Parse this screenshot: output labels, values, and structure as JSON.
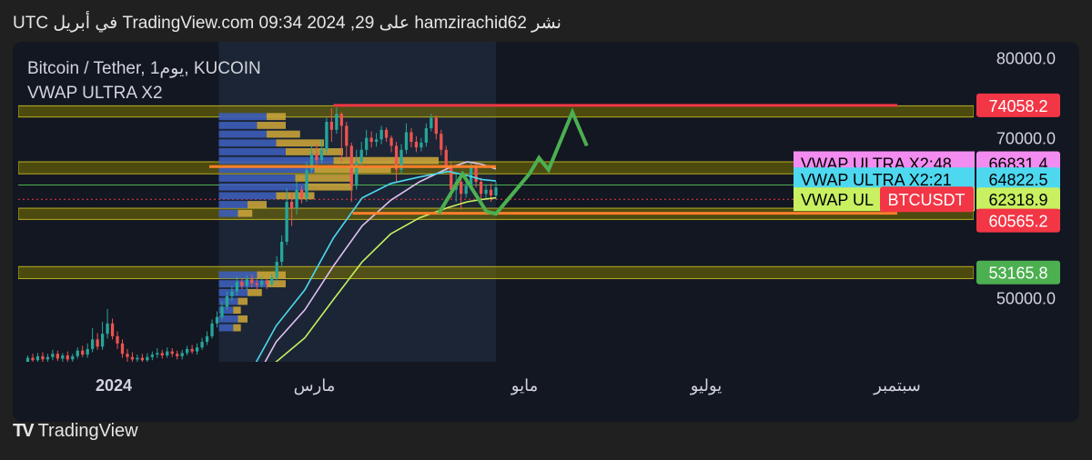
{
  "header": {
    "text": "نشر hamzirachid62 على TradingView.com 09:34 2024 ,29 في أبريل UTC"
  },
  "legend": {
    "symbol": "Bitcoin / Tether, 1يوم, KUCOIN",
    "indicator": "VWAP ULTRA X2"
  },
  "footer": {
    "brand": "TradingView",
    "logo_icon": "tradingview-logo-icon"
  },
  "colors": {
    "background": "#131722",
    "zone": "#8a8a00",
    "red": "#f23645",
    "orange": "#ff7f2a",
    "green_arrow": "#4caf50",
    "up": "#26a69a",
    "down": "#ef5350"
  },
  "chart_data": {
    "type": "candlestick",
    "symbol": "BTCUSDT",
    "ylim": [
      42000,
      82000
    ],
    "y_ticks": [
      {
        "value": 80000,
        "label": "80000.0"
      },
      {
        "value": 70000,
        "label": "70000.0"
      },
      {
        "value": 50000,
        "label": "50000.0"
      }
    ],
    "x_ticks": [
      {
        "label": "2024",
        "bold": true,
        "pos": 0.1
      },
      {
        "label": "مارس",
        "bold": false,
        "pos": 0.31
      },
      {
        "label": "مايو",
        "bold": false,
        "pos": 0.53
      },
      {
        "label": "يوليو",
        "bold": false,
        "pos": 0.72
      },
      {
        "label": "سبتمبر",
        "bold": false,
        "pos": 0.92
      }
    ],
    "price_labels": [
      {
        "text": "74058.2",
        "value": 74058.2,
        "bg": "#f23645",
        "fg": "#ffffff"
      },
      {
        "text": "66831.4",
        "value": 66831.4,
        "bg": "#f28cf0",
        "fg": "#000000"
      },
      {
        "text": "64822.5",
        "value": 64822.5,
        "bg": "#4dd8f0",
        "fg": "#000000"
      },
      {
        "text": "62318.9",
        "value": 62318.9,
        "bg": "#c8f060",
        "fg": "#000000"
      },
      {
        "text": "60565.2",
        "value": 60565.2,
        "bg": "#f23645",
        "fg": "#ffffff"
      },
      {
        "text": "53165.8",
        "value": 53165.8,
        "bg": "#4caf50",
        "fg": "#ffffff"
      }
    ],
    "series_labels": [
      {
        "text": "VWAP ULTRA X2:48",
        "value": 66831.4,
        "bg": "#f28cf0"
      },
      {
        "text": "VWAP ULTRA X2:21",
        "value": 64822.5,
        "bg": "#4dd8f0"
      },
      {
        "text": "VWAP UL",
        "value": 62318.9,
        "bg": "#c8f060"
      }
    ],
    "symbol_tag": {
      "text": "BTCUSDT",
      "value": 62318.9,
      "bg": "#f23645"
    },
    "zones": [
      {
        "from": 72600,
        "to": 74000
      },
      {
        "from": 65500,
        "to": 67000
      },
      {
        "from": 59800,
        "to": 61200
      },
      {
        "from": 52400,
        "to": 53900
      }
    ],
    "levels": [
      {
        "value": 74058.2,
        "color": "#f23645",
        "x0": 0.33,
        "x1": 0.92,
        "width": 3
      },
      {
        "value": 66400,
        "color": "#ff7f2a",
        "x0": 0.2,
        "x1": 0.5,
        "width": 3
      },
      {
        "value": 60565.2,
        "color": "#ff7f2a",
        "x0": 0.35,
        "x1": 0.92,
        "width": 3
      }
    ],
    "candles": [
      [
        41800,
        42500,
        41500,
        42800
      ],
      [
        42500,
        42200,
        41900,
        43000
      ],
      [
        42200,
        42700,
        41800,
        43100
      ],
      [
        42700,
        42300,
        42000,
        43200
      ],
      [
        42300,
        42600,
        41900,
        43000
      ],
      [
        42600,
        43000,
        42200,
        43500
      ],
      [
        43000,
        42400,
        42100,
        43400
      ],
      [
        42400,
        42800,
        42000,
        43100
      ],
      [
        42800,
        42300,
        42000,
        43300
      ],
      [
        42300,
        42700,
        41800,
        43000
      ],
      [
        42700,
        43400,
        42400,
        43800
      ],
      [
        43400,
        42900,
        42600,
        44000
      ],
      [
        42900,
        43600,
        42500,
        44300
      ],
      [
        43600,
        44800,
        43200,
        46200
      ],
      [
        44800,
        43900,
        43500,
        45600
      ],
      [
        43900,
        45500,
        43500,
        47000
      ],
      [
        45500,
        46800,
        44900,
        48600
      ],
      [
        46800,
        45200,
        44800,
        47400
      ],
      [
        45200,
        44300,
        43600,
        45800
      ],
      [
        44300,
        43000,
        42500,
        44800
      ],
      [
        43000,
        42600,
        42000,
        43600
      ],
      [
        42600,
        42300,
        41900,
        43200
      ],
      [
        42300,
        42500,
        41800,
        42900
      ],
      [
        42500,
        42200,
        41900,
        43000
      ],
      [
        42200,
        42600,
        41800,
        43100
      ],
      [
        42600,
        42900,
        42200,
        43300
      ],
      [
        42900,
        43100,
        42500,
        43700
      ],
      [
        43100,
        42800,
        42400,
        43500
      ],
      [
        42800,
        43300,
        42500,
        43800
      ],
      [
        43300,
        43000,
        42600,
        43700
      ],
      [
        43000,
        42700,
        42300,
        43400
      ],
      [
        42700,
        43100,
        42300,
        43500
      ],
      [
        43100,
        43600,
        42800,
        44000
      ],
      [
        43600,
        43300,
        43000,
        44100
      ],
      [
        43300,
        43800,
        42900,
        44300
      ],
      [
        43800,
        44500,
        43500,
        45000
      ],
      [
        44500,
        45200,
        44100,
        45800
      ],
      [
        45200,
        46800,
        44900,
        47300
      ],
      [
        46800,
        47600,
        46300,
        48300
      ],
      [
        47600,
        48900,
        47300,
        49600
      ],
      [
        48900,
        50200,
        48500,
        50800
      ],
      [
        50200,
        50800,
        49600,
        51500
      ],
      [
        50800,
        52000,
        50300,
        52700
      ],
      [
        52000,
        51500,
        51100,
        52500
      ],
      [
        51500,
        52300,
        51000,
        52800
      ],
      [
        52300,
        51800,
        51300,
        52900
      ],
      [
        51800,
        51600,
        51000,
        52300
      ],
      [
        51600,
        52100,
        51300,
        52600
      ],
      [
        52100,
        51700,
        51100,
        52400
      ],
      [
        51700,
        52500,
        51400,
        53000
      ],
      [
        52500,
        54500,
        52100,
        55200
      ],
      [
        54500,
        57000,
        54000,
        57800
      ],
      [
        57000,
        62000,
        56600,
        63700
      ],
      [
        62000,
        61200,
        59000,
        63200
      ],
      [
        61200,
        63500,
        60400,
        64500
      ],
      [
        63500,
        62500,
        61800,
        64000
      ],
      [
        62500,
        66000,
        62000,
        67000
      ],
      [
        66000,
        68000,
        65500,
        69000
      ],
      [
        68000,
        67200,
        66500,
        69200
      ],
      [
        67200,
        68500,
        66800,
        69800
      ],
      [
        68500,
        72000,
        68000,
        72500
      ],
      [
        72000,
        71000,
        69500,
        73700
      ],
      [
        71000,
        73000,
        70500,
        73800
      ],
      [
        73000,
        71500,
        67000,
        73200
      ],
      [
        71500,
        69000,
        67500,
        72000
      ],
      [
        69000,
        64000,
        62000,
        69400
      ],
      [
        64000,
        67000,
        63500,
        68500
      ],
      [
        67000,
        68500,
        66500,
        69500
      ],
      [
        68500,
        70000,
        67800,
        71000
      ],
      [
        70000,
        69500,
        68800,
        70800
      ],
      [
        69500,
        69800,
        68900,
        70600
      ],
      [
        69800,
        71000,
        69200,
        71500
      ],
      [
        71000,
        70000,
        69500,
        71300
      ],
      [
        70000,
        69000,
        68200,
        70300
      ],
      [
        69000,
        66000,
        64500,
        69500
      ],
      [
        66000,
        68500,
        65500,
        69200
      ],
      [
        68500,
        70700,
        68000,
        71800
      ],
      [
        70700,
        69500,
        68800,
        71200
      ],
      [
        69500,
        68800,
        68200,
        70200
      ],
      [
        68800,
        69400,
        68300,
        70000
      ],
      [
        69400,
        71200,
        68900,
        71800
      ],
      [
        71200,
        72500,
        70800,
        73000
      ],
      [
        72500,
        70500,
        69800,
        72800
      ],
      [
        70500,
        68500,
        67800,
        71000
      ],
      [
        68500,
        66500,
        65800,
        69000
      ],
      [
        66500,
        63500,
        62500,
        67000
      ],
      [
        63500,
        64500,
        62000,
        65500
      ],
      [
        64500,
        63000,
        61000,
        65000
      ],
      [
        63000,
        64000,
        62500,
        64800
      ],
      [
        64000,
        66500,
        63500,
        67000
      ],
      [
        66500,
        64500,
        63800,
        67000
      ],
      [
        64500,
        63000,
        62200,
        65000
      ],
      [
        63000,
        63500,
        62400,
        64200
      ],
      [
        63500,
        62800,
        62000,
        64300
      ],
      [
        62800,
        63800,
        62300,
        64500
      ]
    ],
    "vwap_lines": [
      {
        "name": "VWAP ULTRA X2:48",
        "color": "#e0c0f0",
        "points": [
          [
            0.24,
            38000
          ],
          [
            0.27,
            44500
          ],
          [
            0.3,
            48500
          ],
          [
            0.33,
            54000
          ],
          [
            0.36,
            59000
          ],
          [
            0.39,
            62200
          ],
          [
            0.42,
            64500
          ],
          [
            0.45,
            66200
          ],
          [
            0.47,
            67000
          ],
          [
            0.485,
            66700
          ],
          [
            0.5,
            66100
          ]
        ]
      },
      {
        "name": "VWAP ULTRA X2:21",
        "color": "#4dd8f0",
        "points": [
          [
            0.24,
            40000
          ],
          [
            0.27,
            46500
          ],
          [
            0.3,
            51000
          ],
          [
            0.33,
            57500
          ],
          [
            0.36,
            62500
          ],
          [
            0.39,
            64300
          ],
          [
            0.42,
            65100
          ],
          [
            0.45,
            65800
          ],
          [
            0.47,
            65300
          ],
          [
            0.485,
            64800
          ],
          [
            0.5,
            64600
          ]
        ]
      },
      {
        "name": "VWAP UL",
        "color": "#c8f060",
        "points": [
          [
            0.24,
            36000
          ],
          [
            0.27,
            42000
          ],
          [
            0.3,
            45000
          ],
          [
            0.33,
            49800
          ],
          [
            0.36,
            54500
          ],
          [
            0.39,
            58000
          ],
          [
            0.42,
            60000
          ],
          [
            0.45,
            61300
          ],
          [
            0.47,
            62000
          ],
          [
            0.485,
            62300
          ],
          [
            0.5,
            62500
          ]
        ]
      }
    ],
    "projection_arrow": {
      "color": "#4caf50",
      "points": [
        [
          0.44,
          60500
        ],
        [
          0.465,
          65500
        ],
        [
          0.49,
          60800
        ],
        [
          0.5,
          60500
        ],
        [
          0.535,
          65500
        ],
        [
          0.545,
          67500
        ],
        [
          0.555,
          66000
        ],
        [
          0.58,
          73200
        ],
        [
          0.595,
          69000
        ]
      ]
    },
    "volume_profile": [
      {
        "y": 72600,
        "blue": 0.05,
        "yellow": 0.02
      },
      {
        "y": 71500,
        "blue": 0.04,
        "yellow": 0.03
      },
      {
        "y": 70400,
        "blue": 0.05,
        "yellow": 0.035
      },
      {
        "y": 69300,
        "blue": 0.06,
        "yellow": 0.05
      },
      {
        "y": 68200,
        "blue": 0.07,
        "yellow": 0.06
      },
      {
        "y": 67100,
        "blue": 0.12,
        "yellow": 0.11
      },
      {
        "y": 66000,
        "blue": 0.1,
        "yellow": 0.08
      },
      {
        "y": 64900,
        "blue": 0.08,
        "yellow": 0.06
      },
      {
        "y": 63800,
        "blue": 0.09,
        "yellow": 0.05
      },
      {
        "y": 62700,
        "blue": 0.06,
        "yellow": 0.04
      },
      {
        "y": 61600,
        "blue": 0.03,
        "yellow": 0.02
      },
      {
        "y": 60500,
        "blue": 0.02,
        "yellow": 0.015
      },
      {
        "y": 52800,
        "blue": 0.04,
        "yellow": 0.03
      },
      {
        "y": 51700,
        "blue": 0.05,
        "yellow": 0.02
      },
      {
        "y": 50600,
        "blue": 0.03,
        "yellow": 0.015
      },
      {
        "y": 49500,
        "blue": 0.02,
        "yellow": 0.01
      },
      {
        "y": 48400,
        "blue": 0.015,
        "yellow": 0.008
      },
      {
        "y": 47300,
        "blue": 0.02,
        "yellow": 0.01
      },
      {
        "y": 46200,
        "blue": 0.015,
        "yellow": 0.008
      }
    ]
  }
}
